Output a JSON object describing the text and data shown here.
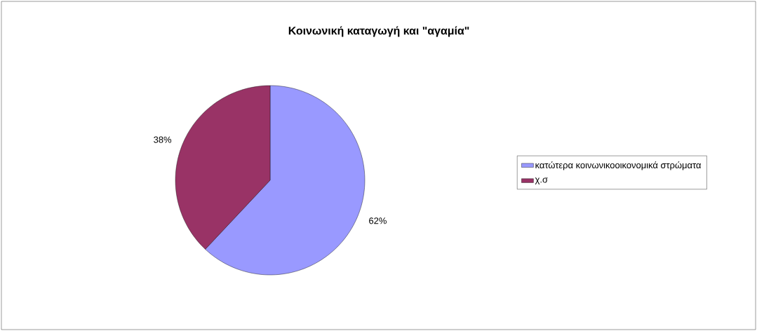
{
  "chart_data": {
    "type": "pie",
    "title": "Κοινωνική καταγωγή και \"αγαμία\"",
    "categories": [
      "κατώτερα κοινωνικοοικονομικά στρώματα",
      "χ.σ"
    ],
    "values": [
      62,
      38
    ],
    "colors": [
      "#9999ff",
      "#993366"
    ],
    "value_labels": [
      "62%",
      "38%"
    ],
    "legend": "right"
  }
}
